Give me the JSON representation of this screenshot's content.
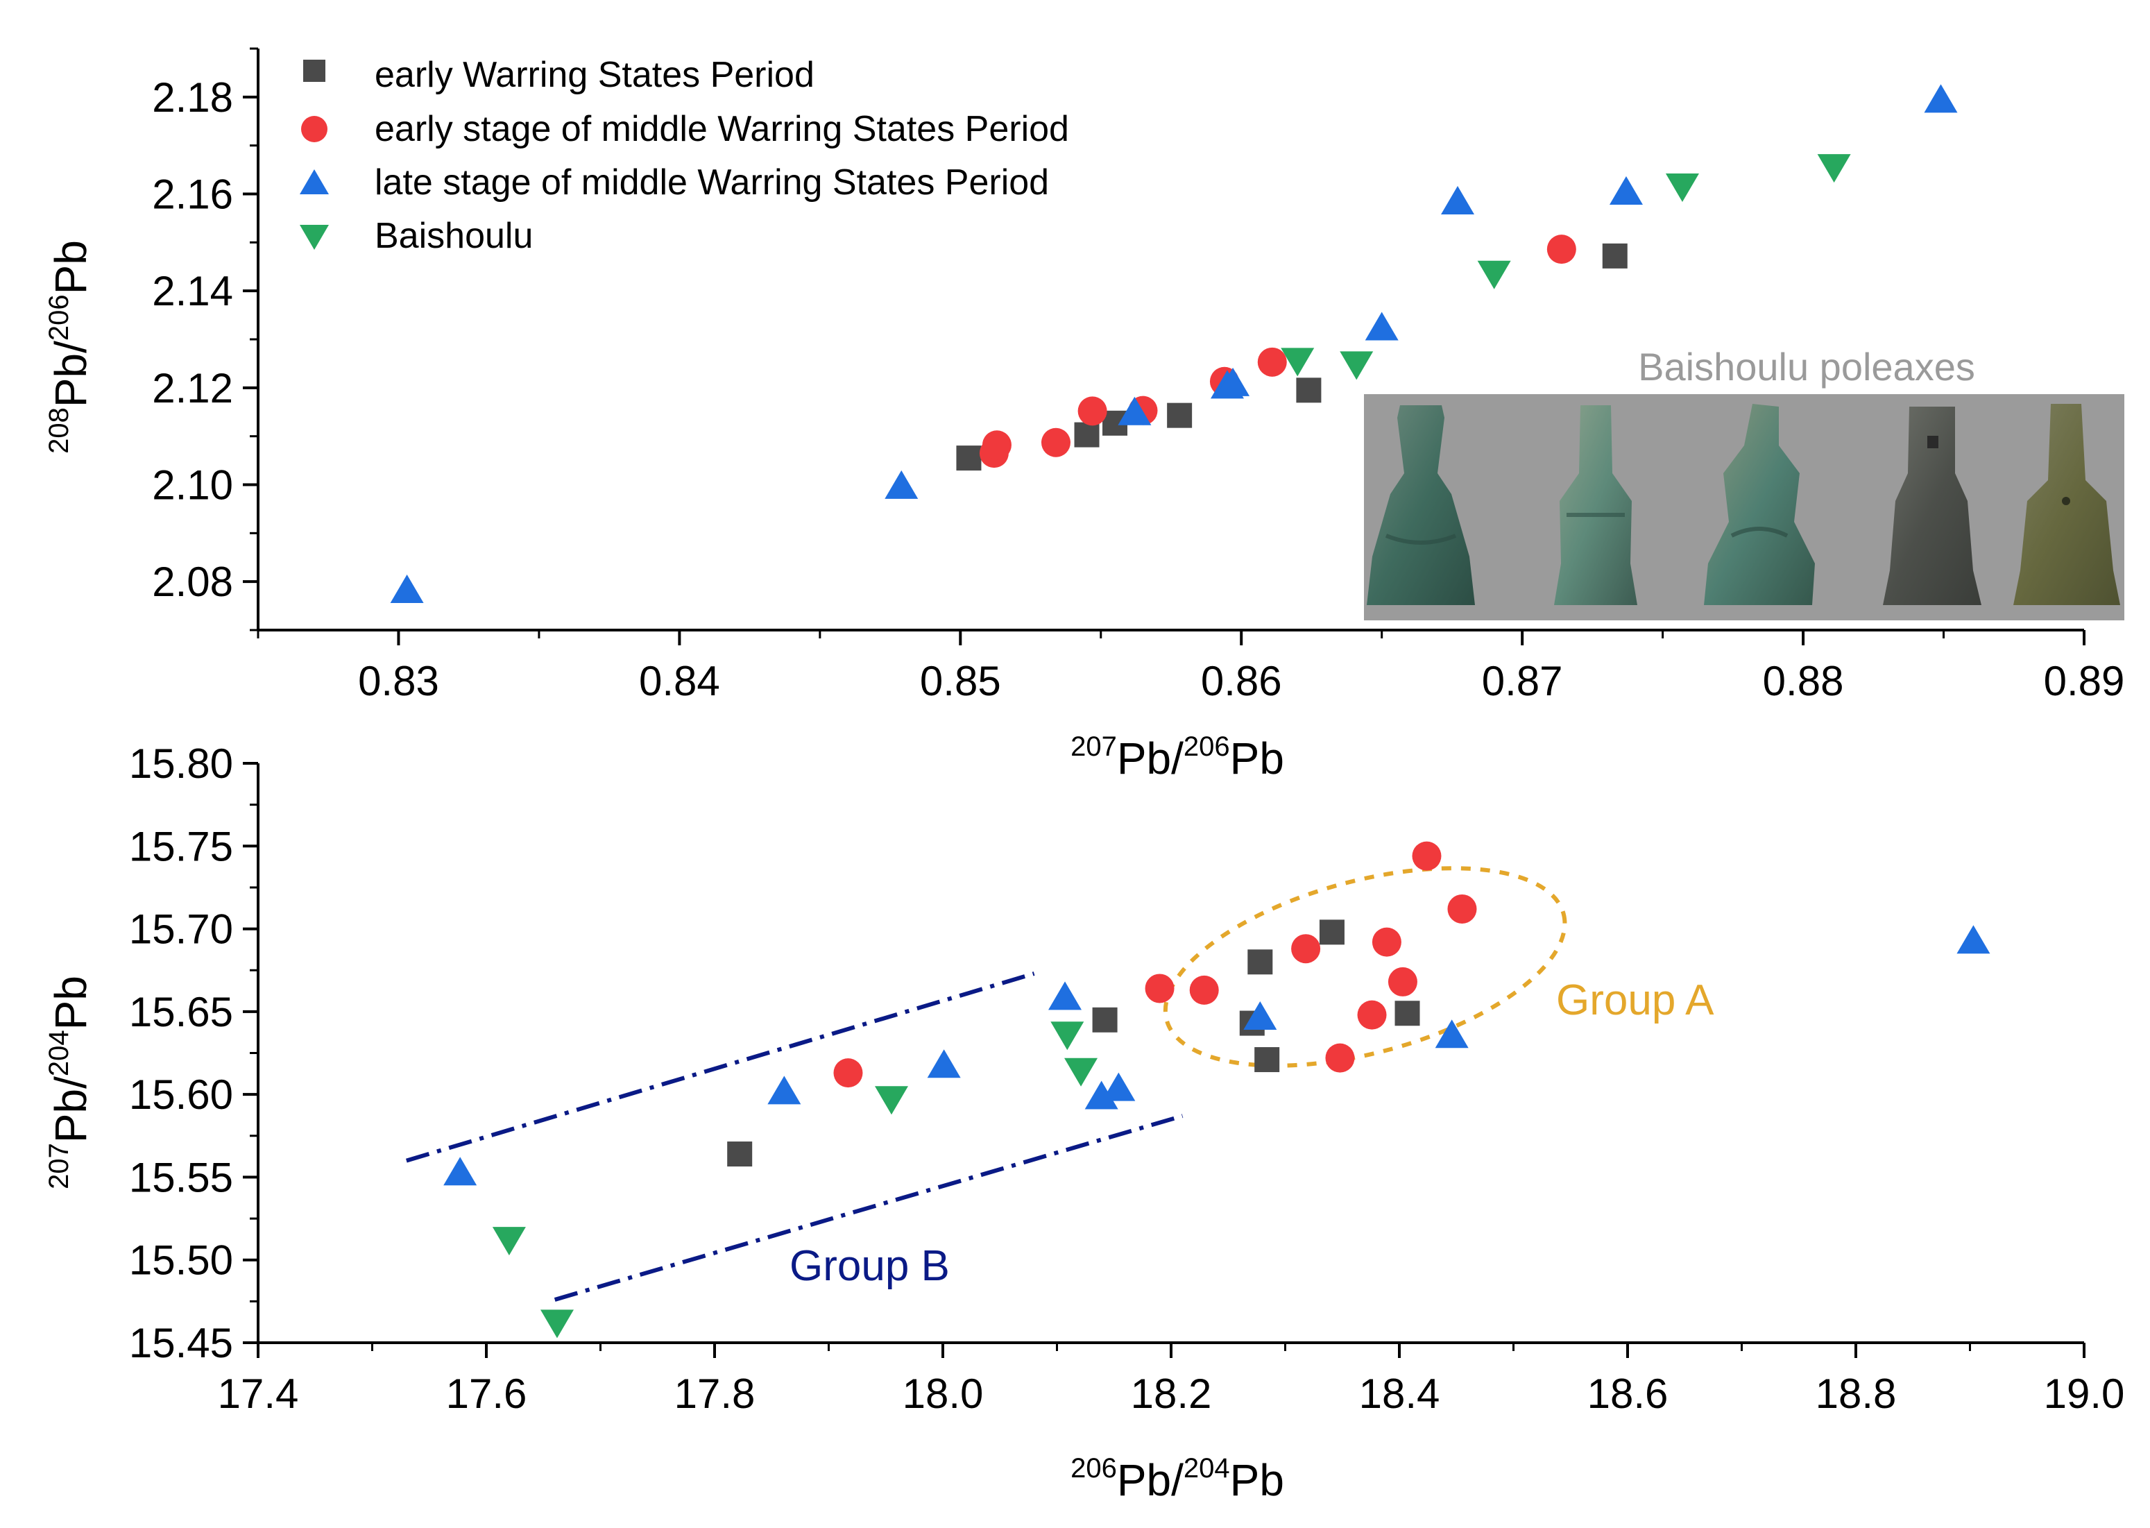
{
  "legend": [
    {
      "label": "early Warring States Period",
      "color": "#4a4a4a",
      "marker": "square"
    },
    {
      "label": "early stage of middle Warring States Period",
      "color": "#f0393c",
      "marker": "circle"
    },
    {
      "label": "late stage of middle Warring States Period",
      "color": "#1f6fe0",
      "marker": "triangle-up"
    },
    {
      "label": "Baishoulu",
      "color": "#27a85e",
      "marker": "triangle-down"
    }
  ],
  "inset": {
    "caption": "Baishoulu poleaxes",
    "items": [
      "poleaxe-1",
      "poleaxe-2",
      "poleaxe-3",
      "poleaxe-4",
      "poleaxe-5"
    ]
  },
  "chart_data": [
    {
      "type": "scatter",
      "xlabel": {
        "base": "Pb",
        "sup1": "207",
        "sup2": "206"
      },
      "ylabel": {
        "base": "Pb",
        "sup1": "208",
        "sup2": "206"
      },
      "xlim": [
        0.825,
        0.89
      ],
      "ylim": [
        2.07,
        2.19
      ],
      "xticks": [
        0.83,
        0.84,
        0.85,
        0.86,
        0.87,
        0.88,
        0.89
      ],
      "xtick_labels": [
        "0.83",
        "0.84",
        "0.85",
        "0.86",
        "0.87",
        "0.88",
        "0.89"
      ],
      "yticks": [
        2.08,
        2.1,
        2.12,
        2.14,
        2.16,
        2.18
      ],
      "ytick_labels": [
        "2.08",
        "2.10",
        "2.12",
        "2.14",
        "2.16",
        "2.18"
      ],
      "series": [
        {
          "name": "early Warring States Period",
          "points": [
            [
              0.8503,
              2.1055
            ],
            [
              0.8545,
              2.1103
            ],
            [
              0.8555,
              2.1127
            ],
            [
              0.8578,
              2.1143
            ],
            [
              0.8624,
              2.1195
            ],
            [
              0.8733,
              2.1472
            ]
          ]
        },
        {
          "name": "early stage of middle Warring States Period",
          "points": [
            [
              0.8512,
              2.1065
            ],
            [
              0.8513,
              2.1082
            ],
            [
              0.8534,
              2.1087
            ],
            [
              0.8547,
              2.1152
            ],
            [
              0.8565,
              2.1153
            ],
            [
              0.8594,
              2.1213
            ],
            [
              0.8611,
              2.1253
            ],
            [
              0.8714,
              2.1486
            ]
          ]
        },
        {
          "name": "late stage of middle Warring States Period",
          "points": [
            [
              0.8303,
              2.0783
            ],
            [
              0.8479,
              2.0998
            ],
            [
              0.8562,
              2.115
            ],
            [
              0.8595,
              2.1205
            ],
            [
              0.8597,
              2.121
            ],
            [
              0.865,
              2.1325
            ],
            [
              0.8677,
              2.1585
            ],
            [
              0.8737,
              2.1605
            ],
            [
              0.8849,
              2.1795
            ]
          ]
        },
        {
          "name": "Baishoulu",
          "points": [
            [
              0.862,
              2.1255
            ],
            [
              0.8641,
              2.1248
            ],
            [
              0.869,
              2.1435
            ],
            [
              0.8757,
              2.1615
            ],
            [
              0.8811,
              2.1655
            ]
          ]
        }
      ]
    },
    {
      "type": "scatter",
      "xlabel": {
        "base": "Pb",
        "sup1": "206",
        "sup2": "204"
      },
      "ylabel": {
        "base": "Pb",
        "sup1": "207",
        "sup2": "204"
      },
      "xlim": [
        17.4,
        19.0
      ],
      "ylim": [
        15.45,
        15.8
      ],
      "xticks": [
        17.4,
        17.6,
        17.8,
        18.0,
        18.2,
        18.4,
        18.6,
        18.8,
        19.0
      ],
      "xtick_labels": [
        "17.4",
        "17.6",
        "17.8",
        "18.0",
        "18.2",
        "18.4",
        "18.6",
        "18.8",
        "19.0"
      ],
      "yticks": [
        15.45,
        15.5,
        15.55,
        15.6,
        15.65,
        15.7,
        15.75,
        15.8
      ],
      "ytick_labels": [
        "15.45",
        "15.50",
        "15.55",
        "15.60",
        "15.65",
        "15.70",
        "15.75",
        "15.80"
      ],
      "series": [
        {
          "name": "early Warring States Period",
          "points": [
            [
              17.822,
              15.564
            ],
            [
              18.142,
              15.645
            ],
            [
              18.271,
              15.643
            ],
            [
              18.278,
              15.68
            ],
            [
              18.284,
              15.621
            ],
            [
              18.341,
              15.698
            ],
            [
              18.407,
              15.649
            ]
          ]
        },
        {
          "name": "early stage of middle Warring States Period",
          "points": [
            [
              17.917,
              15.613
            ],
            [
              18.19,
              15.664
            ],
            [
              18.229,
              15.663
            ],
            [
              18.318,
              15.688
            ],
            [
              18.348,
              15.622
            ],
            [
              18.376,
              15.648
            ],
            [
              18.389,
              15.692
            ],
            [
              18.403,
              15.668
            ],
            [
              18.424,
              15.744
            ],
            [
              18.455,
              15.712
            ]
          ]
        },
        {
          "name": "late stage of middle Warring States Period",
          "points": [
            [
              17.577,
              15.553
            ],
            [
              17.861,
              15.602
            ],
            [
              18.001,
              15.618
            ],
            [
              18.107,
              15.659
            ],
            [
              18.139,
              15.599
            ],
            [
              18.154,
              15.604
            ],
            [
              18.278,
              15.647
            ],
            [
              18.446,
              15.636
            ],
            [
              18.903,
              15.693
            ]
          ]
        },
        {
          "name": "Baishoulu",
          "points": [
            [
              17.62,
              15.512
            ],
            [
              17.662,
              15.462
            ],
            [
              17.955,
              15.597
            ],
            [
              18.109,
              15.636
            ],
            [
              18.121,
              15.614
            ]
          ]
        }
      ],
      "annotations": [
        {
          "label": "Group A",
          "color": "#e4a72b",
          "kind": "ellipse",
          "center": [
            18.37,
            15.677
          ],
          "radii": [
            0.18,
            0.052
          ],
          "rotation_deg": 15
        },
        {
          "label": "Group B",
          "color": "#0a1a86",
          "kind": "dash-dot-lines",
          "lines": [
            [
              [
                17.53,
                15.56
              ],
              [
                18.08,
                15.673
              ]
            ],
            [
              [
                17.66,
                15.476
              ],
              [
                18.21,
                15.587
              ]
            ]
          ]
        }
      ]
    }
  ]
}
